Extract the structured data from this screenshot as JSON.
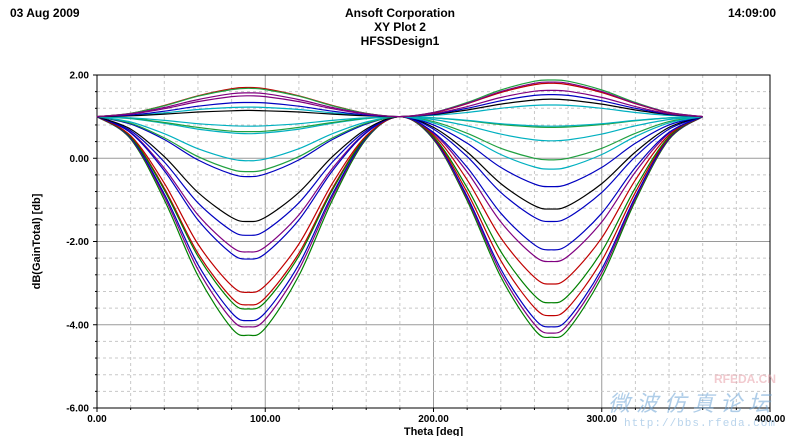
{
  "header": {
    "date": "03 Aug 2009",
    "company": "Ansoft Corporation",
    "plot_name": "XY Plot 2",
    "design": "HFSSDesign1",
    "time": "14:09:00"
  },
  "watermark": {
    "brand": "RFEDA.CN",
    "chinese": "微波仿真论坛",
    "url": "http://bbs.rfeda.com"
  },
  "chart_data": {
    "type": "line",
    "title": "XY Plot 2",
    "xlabel": "Theta [deg]",
    "ylabel": "dB(GainTotal) [db]",
    "xlim": [
      0,
      400
    ],
    "ylim": [
      -6,
      2
    ],
    "x_ticks": [
      "0.00",
      "100.00",
      "200.00",
      "300.00",
      "400.00"
    ],
    "y_ticks": [
      "2.00",
      "0.00",
      "-2.00",
      "-4.00",
      "-6.00"
    ],
    "grid": true,
    "x": [
      0,
      20,
      40,
      60,
      80,
      90,
      100,
      120,
      140,
      160,
      180,
      200,
      220,
      240,
      260,
      270,
      280,
      300,
      320,
      340,
      360
    ],
    "series": [
      {
        "color": "#008000",
        "values": [
          1.0,
          0.46,
          -1.0,
          -2.82,
          -4.08,
          -4.25,
          -4.08,
          -2.82,
          -1.0,
          0.46,
          1.0,
          0.45,
          -1.02,
          -2.85,
          -4.12,
          -4.3,
          -4.12,
          -2.85,
          -1.02,
          0.45,
          1.0
        ]
      },
      {
        "color": "#800080",
        "values": [
          1.0,
          0.48,
          -0.92,
          -2.67,
          -3.87,
          -4.05,
          -3.87,
          -2.67,
          -0.92,
          0.48,
          1.0,
          0.47,
          -0.97,
          -2.75,
          -3.99,
          -4.2,
          -3.99,
          -2.75,
          -0.97,
          0.47,
          1.0
        ]
      },
      {
        "color": "#0000c0",
        "values": [
          1.0,
          0.49,
          -0.86,
          -2.55,
          -3.71,
          -3.9,
          -3.71,
          -2.55,
          -0.86,
          0.49,
          1.0,
          0.48,
          -0.92,
          -2.66,
          -3.86,
          -4.05,
          -3.86,
          -2.66,
          -0.92,
          0.48,
          1.0
        ]
      },
      {
        "color": "#c00000",
        "values": [
          1.0,
          0.52,
          -0.72,
          -2.28,
          -3.35,
          -3.52,
          -3.35,
          -2.28,
          -0.72,
          0.52,
          1.0,
          0.5,
          -0.82,
          -2.46,
          -3.59,
          -3.78,
          -3.59,
          -2.46,
          -0.82,
          0.5,
          1.0
        ]
      },
      {
        "color": "#008000",
        "values": [
          1.0,
          0.51,
          -0.76,
          -2.35,
          -3.45,
          -3.62,
          -3.45,
          -2.35,
          -0.76,
          0.51,
          1.0,
          0.52,
          -0.71,
          -2.24,
          -3.3,
          -3.47,
          -3.3,
          -2.24,
          -0.71,
          0.52,
          1.0
        ]
      },
      {
        "color": "#c00000",
        "values": [
          1.0,
          0.54,
          -0.6,
          -2.06,
          -3.06,
          -3.22,
          -3.06,
          -2.06,
          -0.6,
          0.54,
          1.0,
          0.56,
          -0.52,
          -1.91,
          -2.86,
          -3.02,
          -2.86,
          -1.91,
          -0.52,
          0.56,
          1.0
        ]
      },
      {
        "color": "#800080",
        "values": [
          1.0,
          0.62,
          -0.24,
          -1.36,
          -2.13,
          -2.25,
          -2.13,
          -1.36,
          -0.24,
          0.62,
          1.0,
          0.6,
          -0.33,
          -1.53,
          -2.35,
          -2.48,
          -2.35,
          -1.53,
          -0.33,
          0.6,
          1.0
        ]
      },
      {
        "color": "#0000c0",
        "values": [
          1.0,
          0.61,
          -0.3,
          -1.48,
          -2.29,
          -2.42,
          -2.29,
          -1.48,
          -0.3,
          0.61,
          1.0,
          0.62,
          -0.22,
          -1.32,
          -2.08,
          -2.2,
          -2.08,
          -1.32,
          -0.22,
          0.62,
          1.0
        ]
      },
      {
        "color": "#0000c0",
        "values": [
          1.0,
          0.66,
          -0.09,
          -1.07,
          -1.74,
          -1.85,
          -1.74,
          -1.07,
          -0.09,
          0.66,
          1.0,
          0.7,
          0.04,
          -0.82,
          -1.42,
          -1.52,
          -1.42,
          -0.82,
          0.04,
          0.7,
          1.0
        ]
      },
      {
        "color": "#000000",
        "values": [
          1.0,
          0.7,
          0.04,
          -0.82,
          -1.42,
          -1.52,
          -1.42,
          -0.82,
          0.04,
          0.7,
          1.0,
          0.74,
          0.15,
          -0.61,
          -1.14,
          -1.22,
          -1.14,
          -0.61,
          0.15,
          0.74,
          1.0
        ]
      },
      {
        "color": "#0000c0",
        "values": [
          1.0,
          0.82,
          0.45,
          -0.04,
          -0.38,
          -0.44,
          -0.38,
          -0.04,
          0.45,
          0.82,
          1.0,
          0.8,
          0.36,
          -0.22,
          -0.62,
          -0.68,
          -0.62,
          -0.22,
          0.36,
          0.8,
          1.0
        ]
      },
      {
        "color": "#20a040",
        "values": [
          1.0,
          0.84,
          0.49,
          0.04,
          -0.27,
          -0.32,
          -0.27,
          0.04,
          0.49,
          0.84,
          1.0,
          0.88,
          0.6,
          0.24,
          0.0,
          -0.04,
          0.0,
          0.24,
          0.6,
          0.88,
          1.0
        ]
      },
      {
        "color": "#00b0c0",
        "values": [
          1.0,
          0.87,
          0.59,
          0.23,
          -0.02,
          -0.06,
          -0.02,
          0.23,
          0.59,
          0.87,
          1.0,
          0.85,
          0.52,
          0.09,
          -0.21,
          -0.26,
          -0.21,
          0.09,
          0.52,
          0.85,
          1.0
        ]
      },
      {
        "color": "#00b0c0",
        "values": [
          1.0,
          0.95,
          0.84,
          0.7,
          0.61,
          0.59,
          0.61,
          0.7,
          0.84,
          0.95,
          1.0,
          0.93,
          0.78,
          0.58,
          0.44,
          0.42,
          0.44,
          0.58,
          0.78,
          0.93,
          1.0
        ]
      },
      {
        "color": "#20a040",
        "values": [
          1.0,
          0.96,
          0.86,
          0.74,
          0.65,
          0.64,
          0.65,
          0.74,
          0.86,
          0.96,
          1.0,
          0.97,
          0.9,
          0.81,
          0.75,
          0.74,
          0.75,
          0.81,
          0.9,
          0.97,
          1.0
        ]
      },
      {
        "color": "#00b0c0",
        "values": [
          1.0,
          0.97,
          0.91,
          0.83,
          0.78,
          0.77,
          0.78,
          0.83,
          0.91,
          0.97,
          1.0,
          0.97,
          0.91,
          0.83,
          0.78,
          0.77,
          0.78,
          0.83,
          0.91,
          0.97,
          1.0
        ]
      },
      {
        "color": "#00b0c0",
        "values": [
          1.0,
          1.03,
          1.09,
          1.17,
          1.22,
          1.23,
          1.22,
          1.17,
          1.09,
          1.03,
          1.0,
          1.03,
          1.1,
          1.2,
          1.27,
          1.28,
          1.27,
          1.2,
          1.1,
          1.03,
          1.0
        ]
      },
      {
        "color": "#000000",
        "values": [
          1.0,
          1.02,
          1.06,
          1.11,
          1.14,
          1.15,
          1.14,
          1.11,
          1.06,
          1.02,
          1.0,
          1.05,
          1.16,
          1.3,
          1.4,
          1.42,
          1.4,
          1.3,
          1.16,
          1.05,
          1.0
        ]
      },
      {
        "color": "#0000c0",
        "values": [
          1.0,
          1.04,
          1.13,
          1.25,
          1.33,
          1.34,
          1.33,
          1.25,
          1.13,
          1.04,
          1.0,
          1.06,
          1.2,
          1.38,
          1.51,
          1.53,
          1.51,
          1.38,
          1.2,
          1.06,
          1.0
        ]
      },
      {
        "color": "#800080",
        "values": [
          1.0,
          1.06,
          1.19,
          1.36,
          1.48,
          1.5,
          1.48,
          1.36,
          1.19,
          1.06,
          1.0,
          1.07,
          1.24,
          1.46,
          1.61,
          1.63,
          1.61,
          1.46,
          1.24,
          1.07,
          1.0
        ]
      },
      {
        "color": "#c00000",
        "values": [
          1.0,
          1.08,
          1.27,
          1.5,
          1.67,
          1.7,
          1.67,
          1.5,
          1.27,
          1.08,
          1.0,
          1.09,
          1.31,
          1.58,
          1.77,
          1.8,
          1.77,
          1.58,
          1.31,
          1.09,
          1.0
        ]
      },
      {
        "color": "#20a040",
        "values": [
          1.0,
          1.08,
          1.26,
          1.49,
          1.65,
          1.68,
          1.65,
          1.49,
          1.26,
          1.08,
          1.0,
          1.1,
          1.34,
          1.64,
          1.85,
          1.88,
          1.85,
          1.64,
          1.34,
          1.1,
          1.0
        ]
      },
      {
        "color": "#800080",
        "values": [
          1.0,
          1.07,
          1.22,
          1.41,
          1.55,
          1.57,
          1.55,
          1.41,
          1.22,
          1.07,
          1.0,
          1.1,
          1.32,
          1.6,
          1.8,
          1.83,
          1.8,
          1.6,
          1.32,
          1.1,
          1.0
        ]
      }
    ]
  }
}
